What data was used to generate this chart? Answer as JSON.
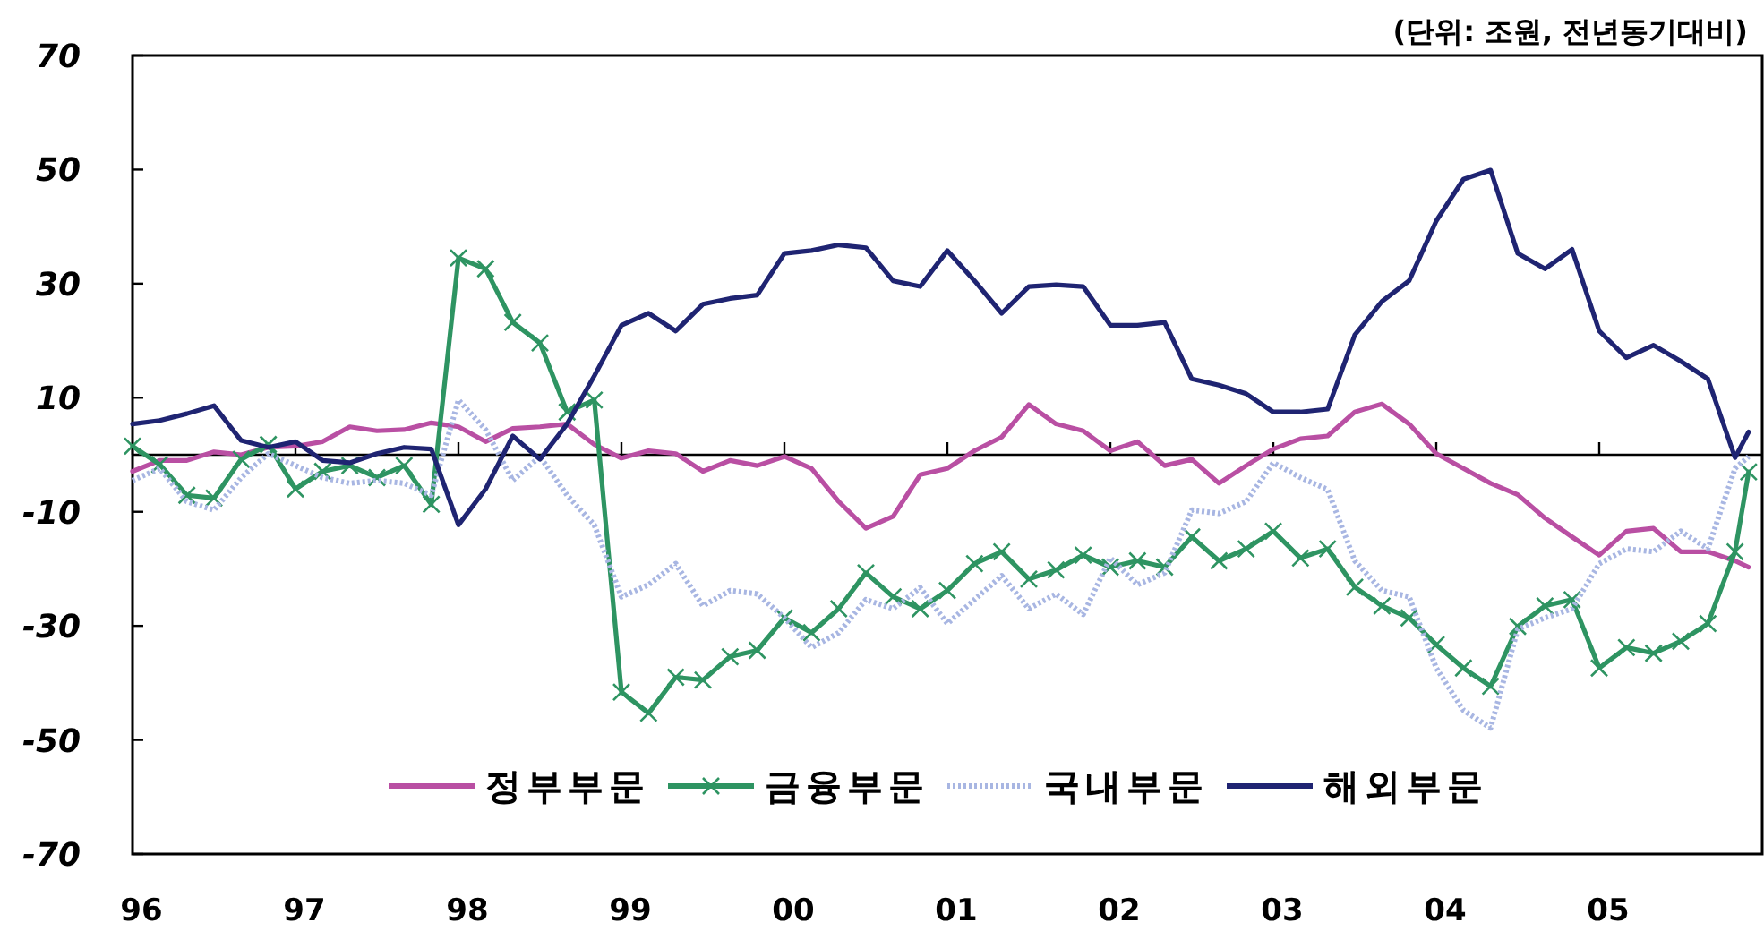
{
  "chart_data": {
    "type": "line",
    "annotations": [
      "(단위: 조원, 전년동기대비)"
    ],
    "x": [
      "1996-01",
      "1996-03",
      "1996-05",
      "1996-07",
      "1996-09",
      "1996-11",
      "1997-01",
      "1997-03",
      "1997-05",
      "1997-07",
      "1997-09",
      "1997-11",
      "1998-01",
      "1998-03",
      "1998-05",
      "1998-07",
      "1998-09",
      "1998-11",
      "1999-01",
      "1999-03",
      "1999-05",
      "1999-07",
      "1999-09",
      "1999-11",
      "2000-01",
      "2000-03",
      "2000-05",
      "2000-07",
      "2000-09",
      "2000-11",
      "2001-01",
      "2001-03",
      "2001-05",
      "2001-07",
      "2001-09",
      "2001-11",
      "2002-01",
      "2002-03",
      "2002-05",
      "2002-07",
      "2002-09",
      "2002-11",
      "2003-01",
      "2003-03",
      "2003-05",
      "2003-07",
      "2003-09",
      "2003-11",
      "2004-01",
      "2004-03",
      "2004-05",
      "2004-07",
      "2004-09",
      "2004-11",
      "2005-01",
      "2005-03",
      "2005-05",
      "2005-07",
      "2005-09",
      "2005-11",
      "2005-12"
    ],
    "xlim": [
      "1996-01",
      "2006-01"
    ],
    "xticks": [
      {
        "value": "1996-01",
        "label": "96"
      },
      {
        "value": "1997-01",
        "label": "97"
      },
      {
        "value": "1998-01",
        "label": "98"
      },
      {
        "value": "1999-01",
        "label": "99"
      },
      {
        "value": "2000-01",
        "label": "00"
      },
      {
        "value": "2001-01",
        "label": "01"
      },
      {
        "value": "2002-01",
        "label": "02"
      },
      {
        "value": "2003-01",
        "label": "03"
      },
      {
        "value": "2004-01",
        "label": "04"
      },
      {
        "value": "2005-01",
        "label": "05"
      }
    ],
    "ylim": [
      -70,
      70
    ],
    "yticks": [
      -70,
      -50,
      -30,
      -10,
      10,
      30,
      50,
      70
    ],
    "legend": "bottom",
    "grid": false,
    "series": [
      {
        "name": "정부부문",
        "color": "#b94fa3",
        "marker": "none",
        "line_style": "solid",
        "values": [
          -2.9,
          -1,
          -1,
          0.5,
          0,
          1.3,
          1.5,
          2.3,
          4.9,
          4.2,
          4.4,
          5.6,
          4.9,
          2.3,
          4.6,
          4.9,
          5.4,
          1.8,
          -0.6,
          0.7,
          0.2,
          -2.9,
          -1,
          -1.9,
          -0.3,
          -2.4,
          -8.2,
          -12.9,
          -10.8,
          -3.5,
          -2.4,
          0.7,
          3.1,
          8.8,
          5.4,
          4.2,
          0.7,
          2.3,
          -1.9,
          -0.8,
          -5,
          -1.9,
          1,
          2.8,
          3.3,
          7.5,
          8.9,
          5.4,
          0.2,
          -2.4,
          -5,
          -7,
          -11.1,
          -14.4,
          -17.6,
          -13.4,
          -12.9,
          -17,
          -17,
          -18.6,
          -19.7
        ]
      },
      {
        "name": "금융부문",
        "color": "#2e9462",
        "marker": "cross",
        "line_style": "solid",
        "values": [
          1.5,
          -1.7,
          -7.1,
          -7.6,
          -0.8,
          1.8,
          -6,
          -2.9,
          -1.9,
          -4,
          -1.9,
          -8.7,
          34.5,
          32.6,
          23.2,
          19.6,
          7.5,
          9.6,
          -41.6,
          -45.3,
          -39,
          -39.5,
          -35.4,
          -34.3,
          -28.6,
          -31.2,
          -27,
          -20.7,
          -24.9,
          -27,
          -23.8,
          -19.1,
          -17,
          -21.8,
          -20.2,
          -17.6,
          -19.7,
          -18.6,
          -19.7,
          -14.4,
          -18.6,
          -16.5,
          -13.4,
          -18.1,
          -16.5,
          -23.2,
          -26.5,
          -28.6,
          -33.3,
          -37.4,
          -40.6,
          -30.1,
          -26.5,
          -25.4,
          -37.4,
          -33.8,
          -34.8,
          -32.7,
          -29.6,
          -17,
          -3
        ]
      },
      {
        "name": "국내부문",
        "color": "#a8b6e2",
        "marker": "none",
        "line_style": "dotted",
        "values": [
          -4.5,
          -2.4,
          -8.2,
          -9.7,
          -4,
          0.2,
          -1.9,
          -4,
          -5,
          -4.5,
          -5,
          -7.1,
          9.6,
          4.4,
          -4.5,
          -0.3,
          -7.1,
          -12.3,
          -24.9,
          -22.8,
          -19.1,
          -26.5,
          -23.8,
          -24.4,
          -28.6,
          -33.8,
          -31.2,
          -25.4,
          -27,
          -23.3,
          -29.6,
          -25.4,
          -21.2,
          -27,
          -24.4,
          -28,
          -18.1,
          -22.8,
          -20.7,
          -9.7,
          -10.3,
          -8.2,
          -1.4,
          -4,
          -6.1,
          -18.6,
          -23.8,
          -24.9,
          -37.4,
          -44.8,
          -47.9,
          -30.6,
          -28.6,
          -27,
          -19.1,
          -16.5,
          -17,
          -13.4,
          -16.5,
          -2.4,
          -0.3
        ]
      },
      {
        "name": "해외부문",
        "color": "#1f2472",
        "marker": "none",
        "line_style": "solid",
        "values": [
          5.4,
          6,
          7.2,
          8.6,
          2.5,
          1.3,
          2.3,
          -1,
          -1.4,
          0.2,
          1.3,
          1,
          -12.3,
          -6,
          3.3,
          -0.8,
          5.4,
          13.8,
          22.7,
          24.8,
          21.7,
          26.4,
          27.4,
          28,
          35.3,
          35.8,
          36.8,
          36.3,
          30.5,
          29.5,
          35.8,
          30.5,
          24.8,
          29.5,
          29.8,
          29.5,
          22.7,
          22.7,
          23.2,
          13.3,
          12.2,
          10.7,
          7.5,
          7.5,
          8,
          21,
          26.9,
          30.5,
          41,
          48.3,
          49.9,
          35.3,
          32.6,
          36,
          21.7,
          17,
          19.2,
          16.4,
          13.3,
          -0.5,
          4
        ]
      }
    ]
  }
}
